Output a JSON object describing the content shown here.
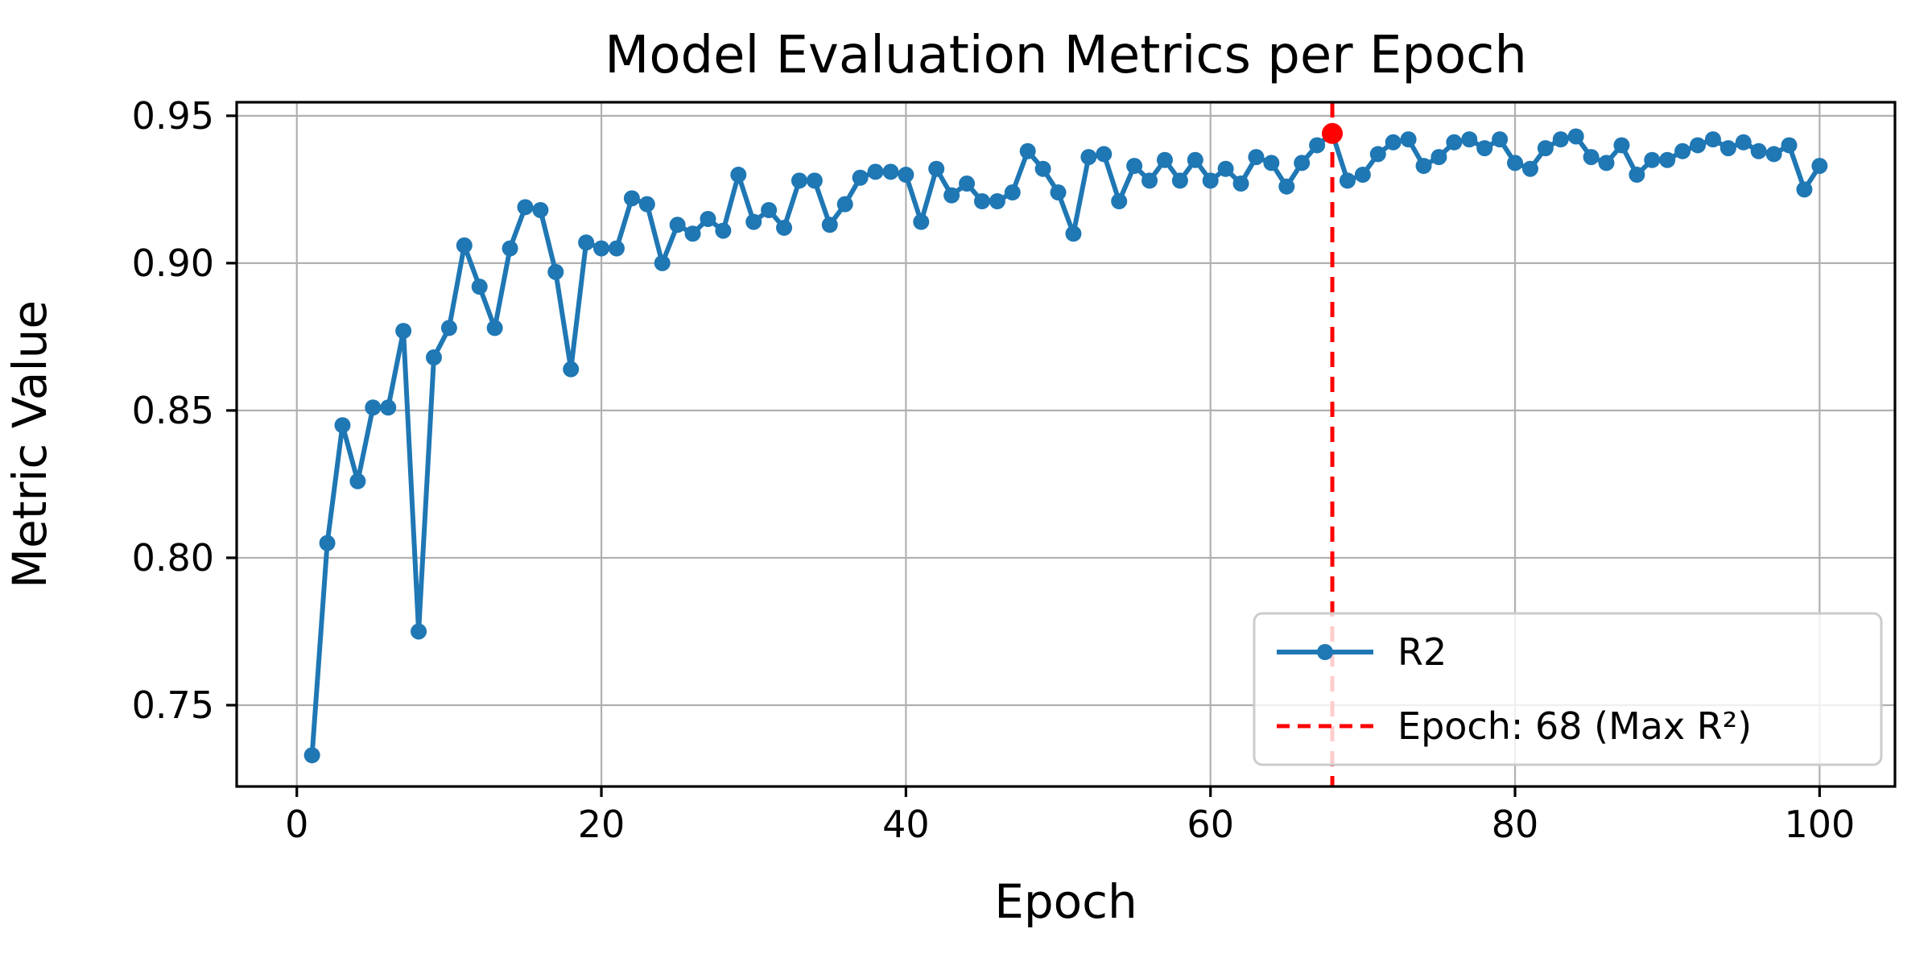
{
  "chart_data": {
    "type": "line",
    "title": "Model Evaluation Metrics per Epoch",
    "xlabel": "Epoch",
    "ylabel": "Metric Value",
    "xlim": [
      -3.95,
      104.95
    ],
    "ylim": [
      0.7224,
      0.9546
    ],
    "xticks": [
      0,
      20,
      40,
      60,
      80,
      100
    ],
    "xtick_labels": [
      "0",
      "20",
      "40",
      "60",
      "80",
      "100"
    ],
    "yticks": [
      0.75,
      0.8,
      0.85,
      0.9,
      0.95
    ],
    "ytick_labels": [
      "0.75",
      "0.80",
      "0.85",
      "0.90",
      "0.95"
    ],
    "grid": true,
    "legend_position": "lower right",
    "colors": {
      "series": "#1f77b4",
      "annotation": "#ff0000",
      "grid": "#b0b0b0",
      "spine": "#000000",
      "legend_border": "#cccccc"
    },
    "series": [
      {
        "name": "R2",
        "color": "#1f77b4",
        "marker": "circle",
        "epochs": [
          1,
          2,
          3,
          4,
          5,
          6,
          7,
          8,
          9,
          10,
          11,
          12,
          13,
          14,
          15,
          16,
          17,
          18,
          19,
          20,
          21,
          22,
          23,
          24,
          25,
          26,
          27,
          28,
          29,
          30,
          31,
          32,
          33,
          34,
          35,
          36,
          37,
          38,
          39,
          40,
          41,
          42,
          43,
          44,
          45,
          46,
          47,
          48,
          49,
          50,
          51,
          52,
          53,
          54,
          55,
          56,
          57,
          58,
          59,
          60,
          61,
          62,
          63,
          64,
          65,
          66,
          67,
          68,
          69,
          70,
          71,
          72,
          73,
          74,
          75,
          76,
          77,
          78,
          79,
          80,
          81,
          82,
          83,
          84,
          85,
          86,
          87,
          88,
          89,
          90,
          91,
          92,
          93,
          94,
          95,
          96,
          97,
          98,
          99,
          100
        ],
        "values": [
          0.733,
          0.805,
          0.845,
          0.826,
          0.851,
          0.851,
          0.877,
          0.775,
          0.868,
          0.878,
          0.906,
          0.892,
          0.878,
          0.905,
          0.919,
          0.918,
          0.897,
          0.864,
          0.907,
          0.905,
          0.905,
          0.922,
          0.92,
          0.9,
          0.913,
          0.91,
          0.915,
          0.911,
          0.93,
          0.914,
          0.918,
          0.912,
          0.928,
          0.928,
          0.913,
          0.92,
          0.929,
          0.931,
          0.931,
          0.93,
          0.914,
          0.932,
          0.923,
          0.927,
          0.921,
          0.921,
          0.924,
          0.938,
          0.932,
          0.924,
          0.91,
          0.936,
          0.937,
          0.921,
          0.933,
          0.928,
          0.935,
          0.928,
          0.935,
          0.928,
          0.932,
          0.927,
          0.936,
          0.934,
          0.926,
          0.934,
          0.94,
          0.944,
          0.928,
          0.93,
          0.937,
          0.941,
          0.942,
          0.933,
          0.936,
          0.941,
          0.942,
          0.939,
          0.942,
          0.934,
          0.932,
          0.939,
          0.942,
          0.943,
          0.936,
          0.934,
          0.94,
          0.93,
          0.935,
          0.935,
          0.938,
          0.94,
          0.942,
          0.939,
          0.941,
          0.938,
          0.937,
          0.94,
          0.925,
          0.933
        ]
      }
    ],
    "vline": {
      "epoch": 68,
      "style": "dashed",
      "color": "#ff0000",
      "label": "Epoch: 68 (Max R²)"
    },
    "max_point": {
      "epoch": 68,
      "value": 0.944,
      "color": "#ff0000"
    },
    "legend": {
      "entries": [
        {
          "label": "R2"
        },
        {
          "label": "Epoch: 68 (Max R²)"
        }
      ]
    }
  }
}
